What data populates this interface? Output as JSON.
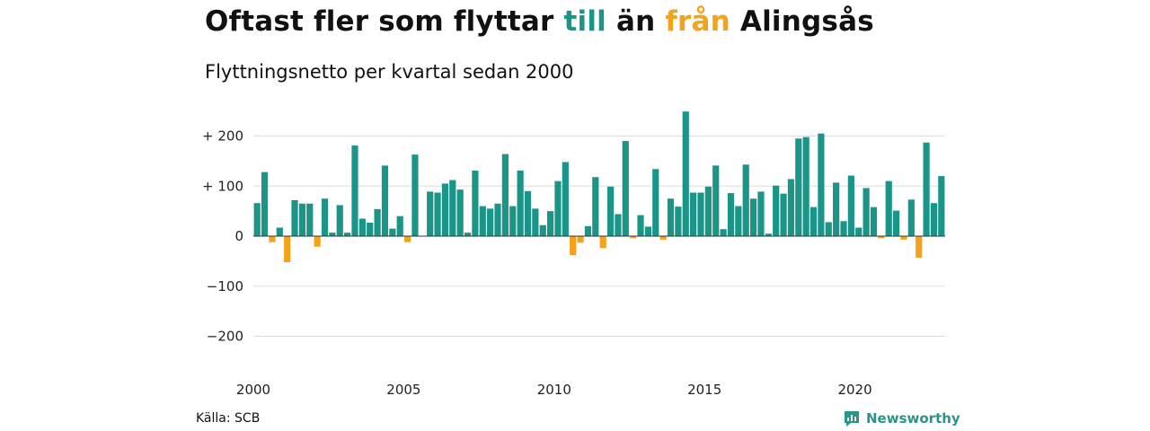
{
  "title": {
    "part1": "Oftast fler som flyttar ",
    "part2": "till",
    "part3": " än ",
    "part4": "från",
    "part5": " Alingsås"
  },
  "subtitle": "Flyttningsnetto per kvartal sedan 2000",
  "source": "Källa: SCB",
  "brand": "Newsworthy",
  "colors": {
    "positive": "#1a9588",
    "negative": "#f5a21b",
    "grid": "#dddddd",
    "brand": "#2a9486"
  },
  "chart_data": {
    "type": "bar",
    "x_start": "2000 Q1",
    "y_ticks": [
      200,
      100,
      0,
      -100,
      -200
    ],
    "y_tick_labels": [
      "+ 200",
      "+ 100",
      "0",
      "−100",
      "−200"
    ],
    "x_ticks": [
      "2000",
      "2005",
      "2010",
      "2015",
      "2020"
    ],
    "ylim": [
      -200,
      250
    ],
    "grid": true,
    "legend": "none",
    "values": [
      66,
      128,
      -12,
      17,
      -52,
      72,
      65,
      65,
      -21,
      75,
      7,
      62,
      7,
      181,
      35,
      27,
      54,
      141,
      15,
      40,
      -12,
      163,
      0,
      89,
      87,
      105,
      112,
      93,
      7,
      131,
      60,
      55,
      65,
      164,
      60,
      131,
      90,
      55,
      22,
      50,
      110,
      148,
      -38,
      -13,
      20,
      118,
      -24,
      99,
      44,
      190,
      -4,
      42,
      19,
      134,
      -7,
      75,
      59,
      249,
      87,
      87,
      99,
      141,
      14,
      86,
      60,
      143,
      75,
      89,
      5,
      101,
      85,
      114,
      195,
      198,
      58,
      205,
      28,
      107,
      30,
      121,
      17,
      96,
      58,
      -4,
      110,
      51,
      -7,
      73,
      -43,
      187,
      66,
      120
    ]
  }
}
